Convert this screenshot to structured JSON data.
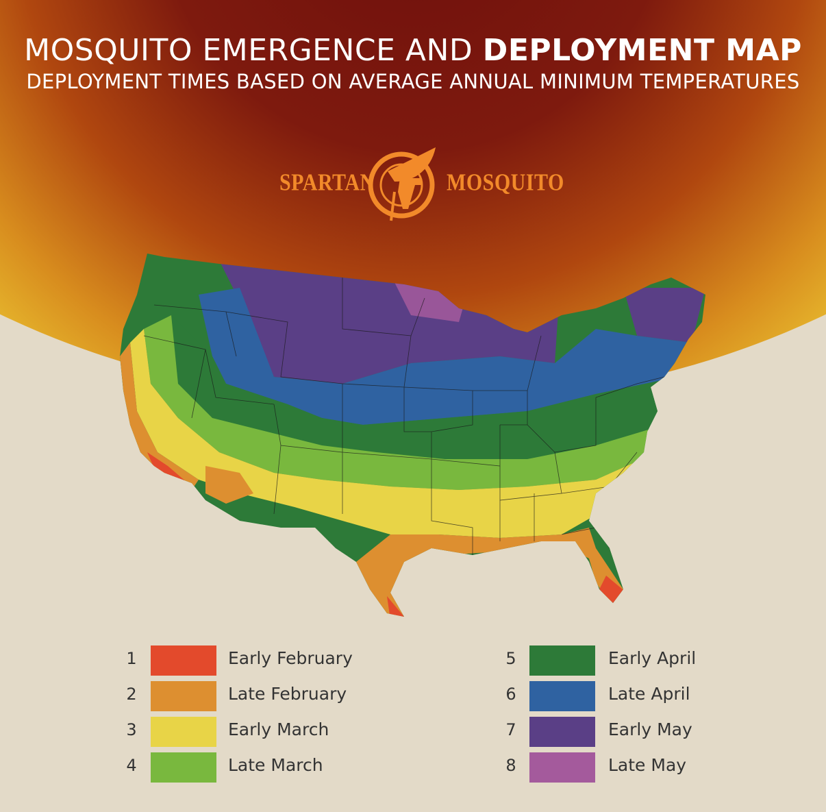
{
  "header": {
    "title_regular": "MOSQUITO EMERGENCE AND ",
    "title_bold": "DEPLOYMENT MAP",
    "subtitle": "DEPLOYMENT TIMES BASED ON AVERAGE ANNUAL MINIMUM TEMPERATURES"
  },
  "brand": {
    "left_word": "SPARTAN",
    "right_word": "MOSQUITO",
    "logo_icon": "spartan-helmet-logo-icon",
    "color": "#f28a2a"
  },
  "legend": [
    {
      "number": "1",
      "label": "Early February",
      "color": "#e34a2c"
    },
    {
      "number": "2",
      "label": "Late February",
      "color": "#dd8f30"
    },
    {
      "number": "3",
      "label": "Early March",
      "color": "#e8d447"
    },
    {
      "number": "4",
      "label": "Late March",
      "color": "#79b83e"
    },
    {
      "number": "5",
      "label": "Early April",
      "color": "#2d7a38"
    },
    {
      "number": "6",
      "label": "Late April",
      "color": "#2f62a1"
    },
    {
      "number": "7",
      "label": "Early May",
      "color": "#5a3f86"
    },
    {
      "number": "8",
      "label": "Late May",
      "color": "#a45a9c"
    }
  ]
}
